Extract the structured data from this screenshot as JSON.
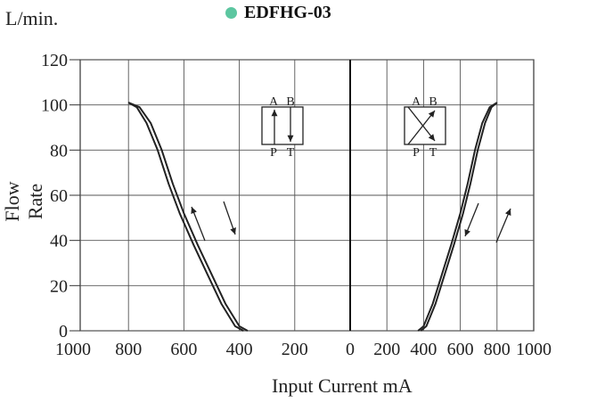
{
  "chart_data": {
    "type": "line",
    "title": "EDFHG-03",
    "title_marker_color": "#5cc6a0",
    "unit_label": "L/min.",
    "xlabel": "Input Current mA",
    "ylabel": "Flow Rate",
    "ylim": [
      0,
      120
    ],
    "y_ticks": [
      0,
      20,
      40,
      60,
      80,
      100,
      120
    ],
    "x_tick_labels": [
      "1000",
      "800",
      "600",
      "400",
      "200",
      "0",
      "200",
      "400",
      "600",
      "800",
      "1000"
    ],
    "grid": true,
    "left_panel": {
      "xlim": [
        1000,
        0
      ],
      "symbol": {
        "ports_top": [
          "A",
          "B"
        ],
        "ports_bottom": [
          "P",
          "T"
        ],
        "type": "parallel"
      },
      "series": [
        {
          "direction": "increasing",
          "x": [
            370,
            400,
            450,
            500,
            550,
            600,
            640,
            680,
            720,
            760,
            800
          ],
          "y": [
            0,
            2,
            12,
            25,
            38,
            52,
            65,
            80,
            92,
            99,
            101
          ]
        },
        {
          "direction": "decreasing",
          "x": [
            385,
            415,
            465,
            515,
            565,
            615,
            655,
            695,
            735,
            770,
            800
          ],
          "y": [
            0,
            2,
            12,
            25,
            38,
            52,
            65,
            80,
            92,
            99,
            101
          ]
        }
      ]
    },
    "right_panel": {
      "xlim": [
        0,
        1000
      ],
      "symbol": {
        "ports_top": [
          "A",
          "B"
        ],
        "ports_bottom": [
          "P",
          "T"
        ],
        "type": "cross"
      },
      "series": [
        {
          "direction": "increasing",
          "x": [
            370,
            400,
            450,
            500,
            550,
            600,
            640,
            680,
            720,
            760,
            800
          ],
          "y": [
            0,
            2,
            12,
            25,
            38,
            52,
            65,
            80,
            92,
            99,
            101
          ]
        },
        {
          "direction": "decreasing",
          "x": [
            385,
            415,
            465,
            515,
            565,
            615,
            655,
            695,
            735,
            770,
            800
          ],
          "y": [
            0,
            2,
            12,
            25,
            38,
            52,
            65,
            80,
            92,
            99,
            101
          ]
        }
      ]
    }
  }
}
